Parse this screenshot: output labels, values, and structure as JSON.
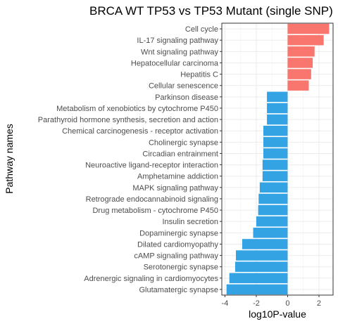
{
  "chart_data": {
    "type": "bar",
    "orientation": "horizontal",
    "title": "BRCA WT TP53 vs TP53 Mutant (single SNP)",
    "xlabel": "log10P-value",
    "ylabel": "Pathway names",
    "xlim": [
      -4.2,
      2.9
    ],
    "xticks": [
      -4,
      -2,
      0,
      2
    ],
    "grid": true,
    "legend": "none",
    "colors": {
      "positive": "#F8766D",
      "negative": "#33A3E3"
    },
    "categories": [
      "Cell cycle",
      "IL-17 signaling pathway",
      "Wnt signaling pathway",
      "Hepatocellular carcinoma",
      "Hepatitis C",
      "Cellular senescence",
      "Parkinson disease",
      "Metabolism of xenobiotics by cytochrome P450",
      "Parathyroid hormone synthesis, secretion and action",
      "Chemical carcinogenesis - receptor activation",
      "Cholinergic synapse",
      "Circadian entrainment",
      "Neuroactive ligand-receptor interaction",
      "Amphetamine addiction",
      "MAPK signaling pathway",
      "Retrograde endocannabinoid signaling",
      "Drug metabolism - cytochrome P450",
      "Insulin secretion",
      "Dopaminergic synapse",
      "Dilated cardiomyopathy",
      "cAMP signaling pathway",
      "Serotonergic synapse",
      "Adrenergic signaling in cardiomyocytes",
      "Glutamatergic synapse"
    ],
    "values": [
      2.65,
      2.3,
      1.72,
      1.6,
      1.5,
      1.35,
      -1.32,
      -1.32,
      -1.32,
      -1.55,
      -1.55,
      -1.55,
      -1.6,
      -1.6,
      -1.78,
      -1.85,
      -1.88,
      -2.0,
      -2.2,
      -2.9,
      -3.3,
      -3.35,
      -3.72,
      -3.9
    ]
  }
}
